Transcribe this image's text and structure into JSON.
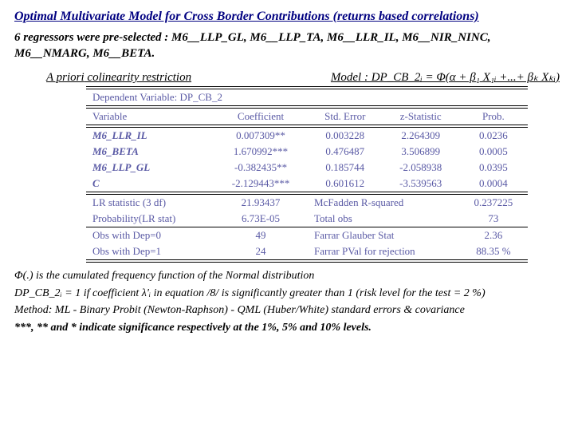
{
  "title": "Optimal Multivariate Model for Cross Border Contributions (returns based correlations)",
  "regressors_line": "6 regressors were pre-selected : M6__LLP_GL, M6__LLP_TA, M6__LLR_IL, M6__NIR_NINC, M6__NMARG, M6__BETA.",
  "apriori_plain": "A priori",
  "apriori_rest": " colinearity restriction",
  "model_text": "Model : DP_CB_2ᵢ = Φ(α + β₁ X₁ᵢ +...+ βₖ Xₖᵢ)",
  "dep_var": "Dependent Variable: DP_CB_2",
  "headers": {
    "c1": "Variable",
    "c2": "Coefficient",
    "c3": "Std. Error",
    "c4": "z-Statistic",
    "c5": "Prob."
  },
  "rows": [
    {
      "v": "M6_LLR_IL",
      "coef": "0.007309**",
      "se": "0.003228",
      "z": "2.264309",
      "p": "0.0236"
    },
    {
      "v": "M6_BETA",
      "coef": "1.670992***",
      "se": "0.476487",
      "z": "3.506899",
      "p": "0.0005"
    },
    {
      "v": "M6_LLP_GL",
      "coef": "-0.382435**",
      "se": "0.185744",
      "z": "-2.058938",
      "p": "0.0395"
    },
    {
      "v": "C",
      "coef": "-2.129443***",
      "se": "0.601612",
      "z": "-3.539563",
      "p": "0.0004"
    }
  ],
  "stats": [
    {
      "l1": "LR statistic (3 df)",
      "v1": "21.93437",
      "l2": "McFadden R-squared",
      "v2": "0.237225"
    },
    {
      "l1": "Probability(LR stat)",
      "v1": "6.73E-05",
      "l2": "Total obs",
      "v2": "73"
    },
    {
      "l1": "Obs with Dep=0",
      "v1": "49",
      "l2": "Farrar Glauber Stat",
      "v2": "2.36"
    },
    {
      "l1": "Obs with Dep=1",
      "v1": "24",
      "l2": "Farrar PVal for rejection",
      "v2": "88.35 %"
    }
  ],
  "note1": "Φ(.) is the cumulated frequency function of the Normal distribution",
  "note2": "DP_CB_2ᵢ = 1 if coefficient λ'ᵢ in equation /8/ is significantly greater than 1 (risk level for the test = 2 %)",
  "note3": "Method: ML - Binary Probit (Newton-Raphson) - QML (Huber/White) standard errors & covariance",
  "note4": "***, ** and * indicate significance respectively at the 1%, 5% and 10% levels."
}
